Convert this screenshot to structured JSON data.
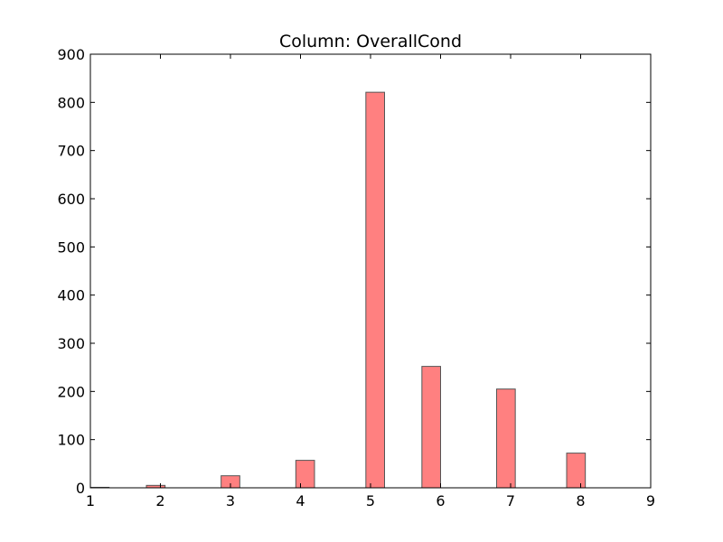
{
  "chart_data": {
    "type": "bar",
    "title": "Column: OverallCond",
    "xlabel": "",
    "ylabel": "",
    "xlim": [
      1,
      9
    ],
    "ylim": [
      0,
      900
    ],
    "xticks": [
      1,
      2,
      3,
      4,
      5,
      6,
      7,
      8,
      9
    ],
    "yticks": [
      0,
      100,
      200,
      300,
      400,
      500,
      600,
      700,
      800,
      900
    ],
    "bar_color": "#ff8080",
    "bar_edge_color": "#555555",
    "grid": false,
    "bars": [
      {
        "x_start": 1.0,
        "x_end": 1.2667,
        "value": 1
      },
      {
        "x_start": 1.8,
        "x_end": 2.0667,
        "value": 5
      },
      {
        "x_start": 2.8667,
        "x_end": 3.1333,
        "value": 25
      },
      {
        "x_start": 3.9333,
        "x_end": 4.2,
        "value": 57
      },
      {
        "x_start": 4.9333,
        "x_end": 5.2,
        "value": 821
      },
      {
        "x_start": 5.7333,
        "x_end": 6.0,
        "value": 252
      },
      {
        "x_start": 6.8,
        "x_end": 7.0667,
        "value": 205
      },
      {
        "x_start": 7.8,
        "x_end": 8.0667,
        "value": 72
      }
    ]
  }
}
